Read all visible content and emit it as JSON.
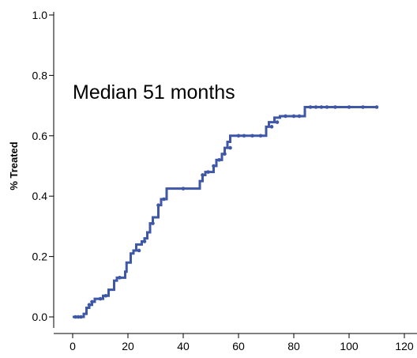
{
  "chart_data": {
    "type": "line",
    "title": "",
    "xlabel": "",
    "ylabel": "% Treated",
    "xlim": [
      0,
      120
    ],
    "ylim": [
      0,
      1.0
    ],
    "xticks": [
      "0",
      "20",
      "40",
      "60",
      "80",
      "100",
      "120"
    ],
    "yticks": [
      "0.0",
      "0.2",
      "0.4",
      "0.6",
      "0.8",
      "1.0"
    ],
    "grid": false,
    "legend": "none",
    "annotation": "Median 51 months",
    "series_color": "#3f57a7",
    "series": [
      {
        "step": true,
        "x": [
          0,
          4,
          5,
          6,
          7,
          8,
          11,
          13,
          15,
          16,
          19,
          19.5,
          21,
          22,
          23,
          25,
          26,
          27,
          28,
          29,
          31,
          32,
          34,
          46,
          47,
          48,
          51,
          52,
          54,
          55,
          56,
          57,
          59,
          70,
          71,
          73,
          75,
          84,
          110
        ],
        "y": [
          0.0,
          0.01,
          0.03,
          0.04,
          0.05,
          0.06,
          0.07,
          0.09,
          0.12,
          0.13,
          0.15,
          0.18,
          0.21,
          0.22,
          0.24,
          0.25,
          0.26,
          0.28,
          0.31,
          0.33,
          0.37,
          0.39,
          0.425,
          0.45,
          0.47,
          0.48,
          0.5,
          0.52,
          0.54,
          0.56,
          0.58,
          0.6,
          0.6,
          0.63,
          0.645,
          0.66,
          0.665,
          0.695,
          0.695
        ]
      }
    ],
    "censor_marks": {
      "x": [
        1,
        2,
        3,
        6,
        7,
        10,
        12,
        17,
        24,
        26,
        29,
        31,
        33,
        40,
        47,
        49,
        51,
        53,
        55,
        57,
        60,
        62,
        65,
        68,
        72,
        74,
        77,
        80,
        82,
        86,
        88,
        90,
        92,
        95,
        100,
        105,
        110
      ],
      "y": [
        0.0,
        0.0,
        0.0,
        0.04,
        0.05,
        0.06,
        0.07,
        0.13,
        0.22,
        0.25,
        0.31,
        0.37,
        0.39,
        0.425,
        0.47,
        0.48,
        0.5,
        0.52,
        0.54,
        0.56,
        0.6,
        0.6,
        0.6,
        0.6,
        0.63,
        0.645,
        0.665,
        0.665,
        0.665,
        0.695,
        0.695,
        0.695,
        0.695,
        0.695,
        0.695,
        0.695,
        0.695
      ]
    }
  }
}
